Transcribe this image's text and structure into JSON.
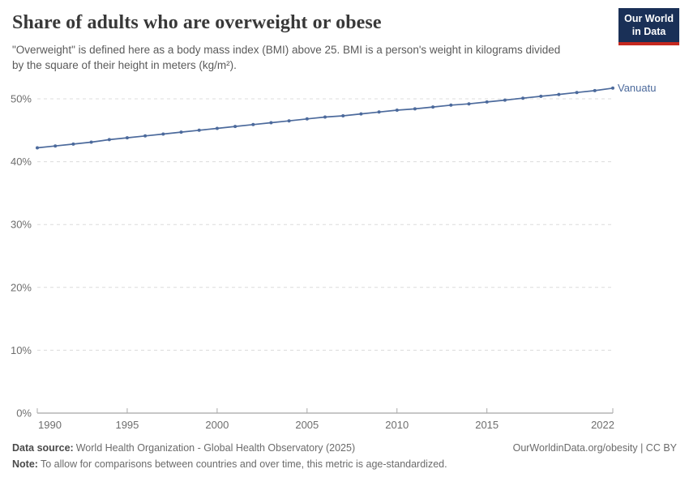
{
  "header": {
    "title": "Share of adults who are overweight or obese",
    "subtitle": "\"Overweight\" is defined here as a body mass index (BMI) above 25. BMI is a person's weight in kilograms divided by the square of their height in meters (kg/m²)."
  },
  "logo": {
    "line1": "Our World",
    "line2": "in Data",
    "bg_color": "#1a3057",
    "bar_color": "#c5281f"
  },
  "chart_data": {
    "type": "line",
    "title": "Share of adults who are overweight or obese",
    "x": [
      1990,
      1991,
      1992,
      1993,
      1994,
      1995,
      1996,
      1997,
      1998,
      1999,
      2000,
      2001,
      2002,
      2003,
      2004,
      2005,
      2006,
      2007,
      2008,
      2009,
      2010,
      2011,
      2012,
      2013,
      2014,
      2015,
      2016,
      2017,
      2018,
      2019,
      2020,
      2021,
      2022
    ],
    "series": [
      {
        "name": "Vanuatu",
        "color": "#4C6A9C",
        "values": [
          42.2,
          42.5,
          42.8,
          43.1,
          43.5,
          43.8,
          44.1,
          44.4,
          44.7,
          45.0,
          45.3,
          45.6,
          45.9,
          46.2,
          46.5,
          46.8,
          47.1,
          47.3,
          47.6,
          47.9,
          48.2,
          48.4,
          48.7,
          49.0,
          49.2,
          49.5,
          49.8,
          50.1,
          50.4,
          50.7,
          51.0,
          51.3,
          51.7
        ]
      }
    ],
    "xlabel": "",
    "ylabel": "",
    "xlim": [
      1990,
      2022
    ],
    "ylim": [
      0,
      55
    ],
    "xticks": [
      1990,
      1995,
      2000,
      2005,
      2010,
      2015,
      2022
    ],
    "yticks": [
      0,
      10,
      20,
      30,
      40,
      50
    ],
    "ytick_suffix": "%",
    "grid": "horizontal-dashed",
    "legend_position": "line-end-label"
  },
  "footer": {
    "datasource_label": "Data source:",
    "datasource_value": "World Health Organization - Global Health Observatory (2025)",
    "rights": "OurWorldinData.org/obesity | CC BY",
    "note_label": "Note:",
    "note_value": "To allow for comparisons between countries and over time, this metric is age-standardized."
  }
}
